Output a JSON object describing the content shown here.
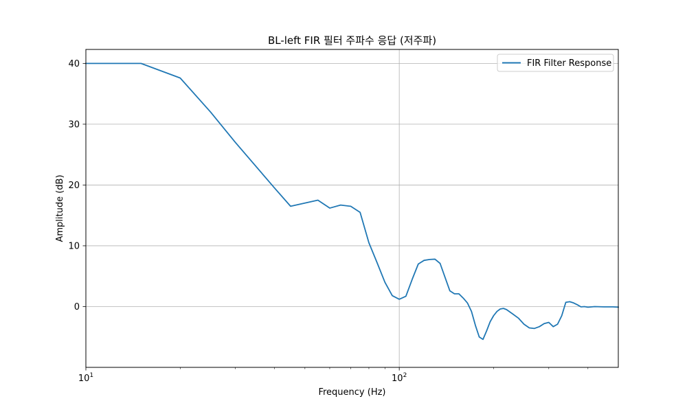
{
  "chart_data": {
    "type": "line",
    "title": "BL-left FIR 필터 주파수 응답 (저주파)",
    "xlabel": "Frequency (Hz)",
    "ylabel": "Amplitude (dB)",
    "xscale": "log",
    "xlim": [
      10,
      500
    ],
    "ylim": [
      -10,
      42.3
    ],
    "grid": true,
    "legend_position": "top-right",
    "x_ticks": [
      {
        "value": 10,
        "base": "10",
        "exp": "1"
      },
      {
        "value": 100,
        "base": "10",
        "exp": "2"
      }
    ],
    "x_minor_ticks": [
      20,
      30,
      40,
      50,
      60,
      70,
      80,
      90,
      200,
      300,
      400
    ],
    "y_ticks": [
      {
        "value": 0,
        "label": "0"
      },
      {
        "value": 10,
        "label": "10"
      },
      {
        "value": 20,
        "label": "20"
      },
      {
        "value": 30,
        "label": "30"
      },
      {
        "value": 40,
        "label": "40"
      }
    ],
    "series": [
      {
        "name": "FIR Filter Response",
        "color": "#1f77b4",
        "x": [
          10,
          15,
          20,
          25,
          30,
          40,
          45,
          55,
          60,
          65,
          70,
          75,
          80,
          85,
          90,
          95,
          100,
          105,
          110,
          115,
          120,
          125,
          130,
          135,
          140,
          145,
          150,
          155,
          160,
          165,
          170,
          175,
          180,
          185,
          190,
          195,
          200,
          205,
          210,
          215,
          220,
          230,
          240,
          250,
          260,
          270,
          280,
          290,
          300,
          310,
          320,
          330,
          340,
          350,
          360,
          370,
          380,
          390,
          400,
          420,
          450,
          480,
          500
        ],
        "y": [
          40,
          40,
          37.6,
          32,
          27,
          19.5,
          16.5,
          17.5,
          16.2,
          16.7,
          16.5,
          15.5,
          10.5,
          7.2,
          4.0,
          1.8,
          1.2,
          1.7,
          4.5,
          7.0,
          7.6,
          7.75,
          7.8,
          7.1,
          4.8,
          2.6,
          2.1,
          2.1,
          1.4,
          0.6,
          -0.8,
          -3.1,
          -5.0,
          -5.4,
          -4.0,
          -2.5,
          -1.5,
          -0.8,
          -0.4,
          -0.3,
          -0.5,
          -1.2,
          -1.9,
          -2.9,
          -3.5,
          -3.6,
          -3.3,
          -2.8,
          -2.6,
          -3.3,
          -2.9,
          -1.5,
          0.7,
          0.8,
          0.6,
          0.3,
          -0.05,
          0.0,
          -0.1,
          0.0,
          -0.05,
          -0.05,
          -0.1
        ]
      }
    ]
  }
}
